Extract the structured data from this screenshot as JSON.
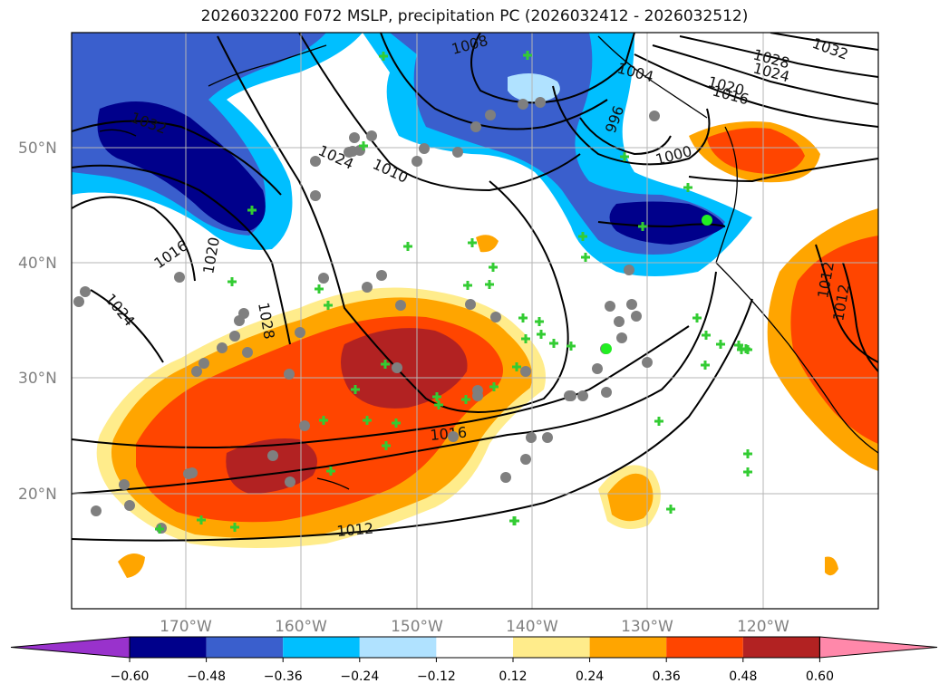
{
  "title": "2026032200 F072 MSLP, precipitation PC (2026032412 - 2026032512)",
  "map": {
    "lat_ticks": [
      "50°N",
      "40°N",
      "30°N",
      "20°N"
    ],
    "lon_ticks": [
      "170°W",
      "160°W",
      "150°W",
      "140°W",
      "130°W",
      "120°W"
    ],
    "isobar_labels": [
      "1032",
      "1032",
      "1028",
      "1024",
      "1024",
      "1020",
      "1016",
      "1016",
      "1010",
      "1008",
      "1004",
      "1000",
      "996",
      "1012",
      "1012",
      "1020",
      "1024",
      "1028",
      "1016",
      "1012"
    ]
  },
  "colorbar": {
    "ticks": [
      "−0.60",
      "−0.48",
      "−0.36",
      "−0.24",
      "−0.12",
      "0.12",
      "0.24",
      "0.36",
      "0.48",
      "0.60"
    ],
    "colors": [
      "#9932cc",
      "#00008b",
      "#3a5fcd",
      "#00bfff",
      "#b0e2ff",
      "#ffffff",
      "#ffec8b",
      "#ffa500",
      "#ff4500",
      "#b22222",
      "#ff88aa"
    ]
  }
}
